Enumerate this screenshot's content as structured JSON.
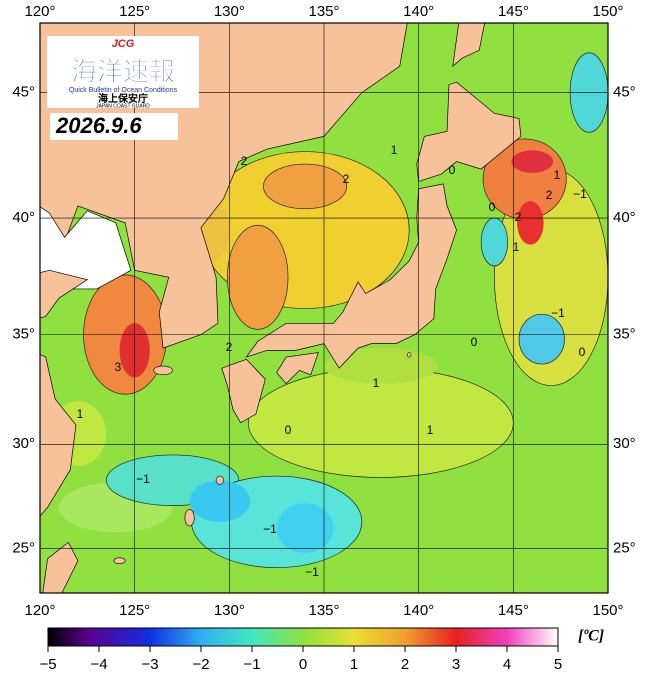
{
  "map": {
    "logo": {
      "badge": "JCG",
      "title": "海洋速報",
      "subtitle": "Quick Bulletin of Ocean Conditions",
      "agency": "海上保安庁",
      "agency_en": "JAPAN COAST GUARD"
    },
    "date": "2026.9.6",
    "xlim": [
      120,
      150
    ],
    "ylim": [
      22.8,
      47.6
    ],
    "xticks": [
      {
        "value": 120,
        "label": "120°"
      },
      {
        "value": 125,
        "label": "125°"
      },
      {
        "value": 130,
        "label": "130°"
      },
      {
        "value": 135,
        "label": "135°"
      },
      {
        "value": 140,
        "label": "140°"
      },
      {
        "value": 145,
        "label": "145°"
      },
      {
        "value": 150,
        "label": "150°"
      }
    ],
    "yticks": [
      {
        "value": 25,
        "label": "25°"
      },
      {
        "value": 30,
        "label": "30°"
      },
      {
        "value": 35,
        "label": "35°"
      },
      {
        "value": 40,
        "label": "40°"
      },
      {
        "value": 45,
        "label": "45°"
      }
    ],
    "grid": true,
    "contour_labels": [
      2,
      2,
      1,
      0,
      0,
      2,
      1,
      2,
      {
        "value": -1,
        "label": "−1"
      },
      1,
      {
        "value": -1,
        "label": "−1"
      },
      0,
      0,
      3,
      2,
      1,
      0,
      1,
      {
        "value": -1,
        "label": "−1"
      },
      {
        "value": -1,
        "label": "−1"
      },
      {
        "value": -1,
        "label": "−1"
      },
      1
    ],
    "colorbar": {
      "unit": "[ºC]",
      "lim": [
        -5,
        5
      ],
      "ticks": [
        {
          "value": -5,
          "label": "−5"
        },
        {
          "value": -4,
          "label": "−4"
        },
        {
          "value": -3,
          "label": "−3"
        },
        {
          "value": -2,
          "label": "−2"
        },
        {
          "value": -1,
          "label": "−1"
        },
        0,
        1,
        2,
        3,
        4,
        5
      ]
    }
  }
}
